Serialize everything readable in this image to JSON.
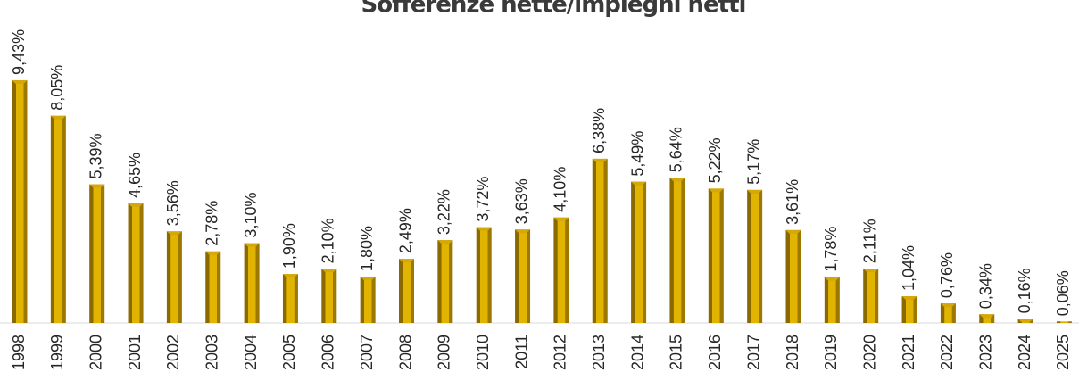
{
  "chart_data": {
    "type": "bar",
    "title": "Sofferenze nette/impieghi netti",
    "categories": [
      "1998",
      "1999",
      "2000",
      "2001",
      "2002",
      "2003",
      "2004",
      "2005",
      "2006",
      "2007",
      "2008",
      "2009",
      "2010",
      "2011",
      "2012",
      "2013",
      "2014",
      "2015",
      "2016",
      "2017",
      "2018",
      "2019",
      "2020",
      "2021",
      "2022",
      "2023",
      "2024",
      "2025"
    ],
    "values": [
      9.43,
      8.05,
      5.39,
      4.65,
      3.56,
      2.78,
      3.1,
      1.9,
      2.1,
      1.8,
      2.49,
      3.22,
      3.72,
      3.63,
      4.1,
      6.38,
      5.49,
      5.64,
      5.22,
      5.17,
      3.61,
      1.78,
      2.11,
      1.04,
      0.76,
      0.34,
      0.16,
      0.06
    ],
    "value_labels": [
      "9,43%",
      "8,05%",
      "5,39%",
      "4,65%",
      "3,56%",
      "2,78%",
      "3,10%",
      "1,90%",
      "2,10%",
      "1,80%",
      "2,49%",
      "3,22%",
      "3,72%",
      "3,63%",
      "4,10%",
      "6,38%",
      "5,49%",
      "5,64%",
      "5,22%",
      "5,17%",
      "3,61%",
      "1,78%",
      "2,11%",
      "1,04%",
      "0,76%",
      "0,34%",
      "0,16%",
      "0,06%"
    ],
    "color": "#d4a80a"
  }
}
